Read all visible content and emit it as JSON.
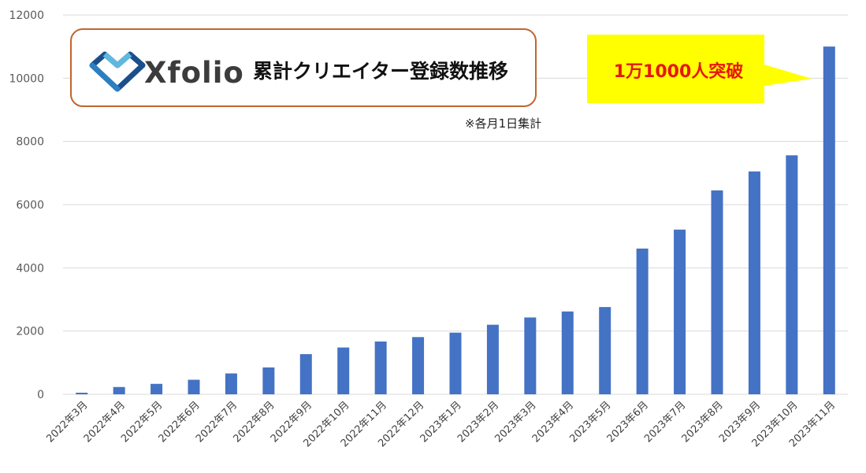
{
  "header": {
    "logo_text": "Xfolio",
    "title": "累計クリエイター登録数推移",
    "note": "※各月1日集計"
  },
  "callout": {
    "text": "1万1000人突破"
  },
  "colors": {
    "bar": "#4472c4",
    "grid": "#d9d9d9",
    "title_border": "#c0652e",
    "callout_bg": "#ffff00",
    "callout_text": "#e8160c",
    "logo_dark": "#1b4f8c",
    "logo_light": "#5fb8e0"
  },
  "icons": {
    "logo": "heart-diamond-logo-icon"
  },
  "chart_data": {
    "type": "bar",
    "categories": [
      "2022年3月",
      "2022年4月",
      "2022年5月",
      "2022年6月",
      "2022年7月",
      "2022年8月",
      "2022年9月",
      "2022年10月",
      "2022年11月",
      "2022年12月",
      "2023年1月",
      "2023年2月",
      "2023年3月",
      "2023年4月",
      "2023年5月",
      "2023年6月",
      "2023年7月",
      "2023年8月",
      "2023年9月",
      "2023年10月",
      "2023年11月"
    ],
    "values": [
      50,
      230,
      330,
      460,
      660,
      850,
      1270,
      1480,
      1670,
      1810,
      1950,
      2200,
      2430,
      2620,
      2760,
      4610,
      5210,
      6450,
      7050,
      7560,
      11000
    ],
    "yticks": [
      0,
      2000,
      4000,
      6000,
      8000,
      10000,
      12000
    ],
    "ylim": [
      0,
      12000
    ],
    "grid": true,
    "legend": "none"
  }
}
